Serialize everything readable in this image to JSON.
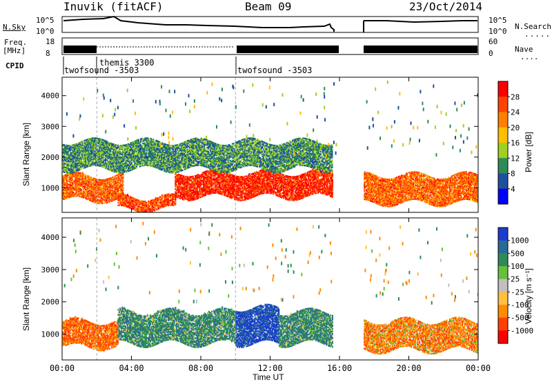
{
  "header": {
    "station": "Inuvik (fitACF)",
    "beam": "Beam 09",
    "date": "23/Oct/2014"
  },
  "top_panels": {
    "nsky_label": "N.Sky",
    "nsky_ticks": [
      "10^5",
      "10^0"
    ],
    "nsearch_ticks": [
      "10^5",
      "10^0"
    ],
    "nsearch_label": "N.Search",
    "freq_label_1": "Freq.",
    "freq_label_2": "[MHz]",
    "freq_ticks": [
      "18",
      "8"
    ],
    "nave_ticks": [
      "60",
      "0"
    ],
    "nave_label": "Nave",
    "cpid_label": "CPID",
    "cpid_modes": [
      "twofsound -3503",
      "themis 3300",
      "twofsound -3503"
    ]
  },
  "chart_data": [
    {
      "type": "heatmap",
      "panel": "power",
      "xlabel": "Time UT",
      "ylabel": "Slant Range [km]",
      "x_ticks": [
        "00:00",
        "04:00",
        "08:00",
        "12:00",
        "16:00",
        "20:00",
        "00:00"
      ],
      "xlim_hours": [
        0,
        24
      ],
      "y_ticks": [
        1000,
        2000,
        3000,
        4000
      ],
      "ylim": [
        200,
        4600
      ],
      "colorbar": {
        "label": "Power [dB]",
        "ticks": [
          "28",
          "24",
          "20",
          "16",
          "12",
          "8",
          "4"
        ],
        "colors": [
          "#ff0000",
          "#ff4400",
          "#ff7f00",
          "#ffbf00",
          "#a0d020",
          "#2e8b57",
          "#1e50a0",
          "#0000ff"
        ]
      },
      "data_gap_hours": [
        15.8,
        17.4
      ],
      "echo_regions": [
        {
          "t_start": 0.0,
          "t_end": 3.5,
          "range_km": [
            600,
            1400
          ],
          "value_db": 24
        },
        {
          "t_start": 3.2,
          "t_end": 6.5,
          "range_km": [
            300,
            700
          ],
          "value_db": 26
        },
        {
          "t_start": 6.5,
          "t_end": 15.6,
          "range_km": [
            700,
            1500
          ],
          "value_db": 28
        },
        {
          "t_start": 17.4,
          "t_end": 24.0,
          "range_km": [
            500,
            1400
          ],
          "value_db": 24
        },
        {
          "t_start": 0.0,
          "t_end": 15.6,
          "range_km": [
            1600,
            2500
          ],
          "value_db": 10
        }
      ]
    },
    {
      "type": "heatmap",
      "panel": "velocity",
      "xlabel": "Time UT",
      "ylabel": "Slant Range [km]",
      "x_ticks": [
        "00:00",
        "04:00",
        "08:00",
        "12:00",
        "16:00",
        "20:00",
        "00:00"
      ],
      "xlim_hours": [
        0,
        24
      ],
      "y_ticks": [
        1000,
        2000,
        3000,
        4000
      ],
      "ylim": [
        200,
        4600
      ],
      "colorbar": {
        "label": "Velocity [m s⁻¹]",
        "ticks": [
          "1000",
          "500",
          "100",
          "25",
          "-25",
          "-100",
          "-500",
          "-1000"
        ],
        "colors": [
          "#1a3ccf",
          "#2a6a9a",
          "#2e8b57",
          "#66c03a",
          "#c0c0c0",
          "#ffbf40",
          "#ff8c00",
          "#ff4000",
          "#ff0000"
        ]
      },
      "data_gap_hours": [
        15.8,
        17.4
      ],
      "echo_regions": [
        {
          "t_start": 0.0,
          "t_end": 3.2,
          "range_km": [
            600,
            1400
          ],
          "value_ms": -300
        },
        {
          "t_start": 3.2,
          "t_end": 10.0,
          "range_km": [
            700,
            1700
          ],
          "value_ms": 200
        },
        {
          "t_start": 10.0,
          "t_end": 12.5,
          "range_km": [
            700,
            1800
          ],
          "value_ms": 800
        },
        {
          "t_start": 12.5,
          "t_end": 15.6,
          "range_km": [
            700,
            1700
          ],
          "value_ms": 200
        },
        {
          "t_start": 17.4,
          "t_end": 24.0,
          "range_km": [
            500,
            1400
          ],
          "value_ms": -200
        }
      ]
    }
  ]
}
